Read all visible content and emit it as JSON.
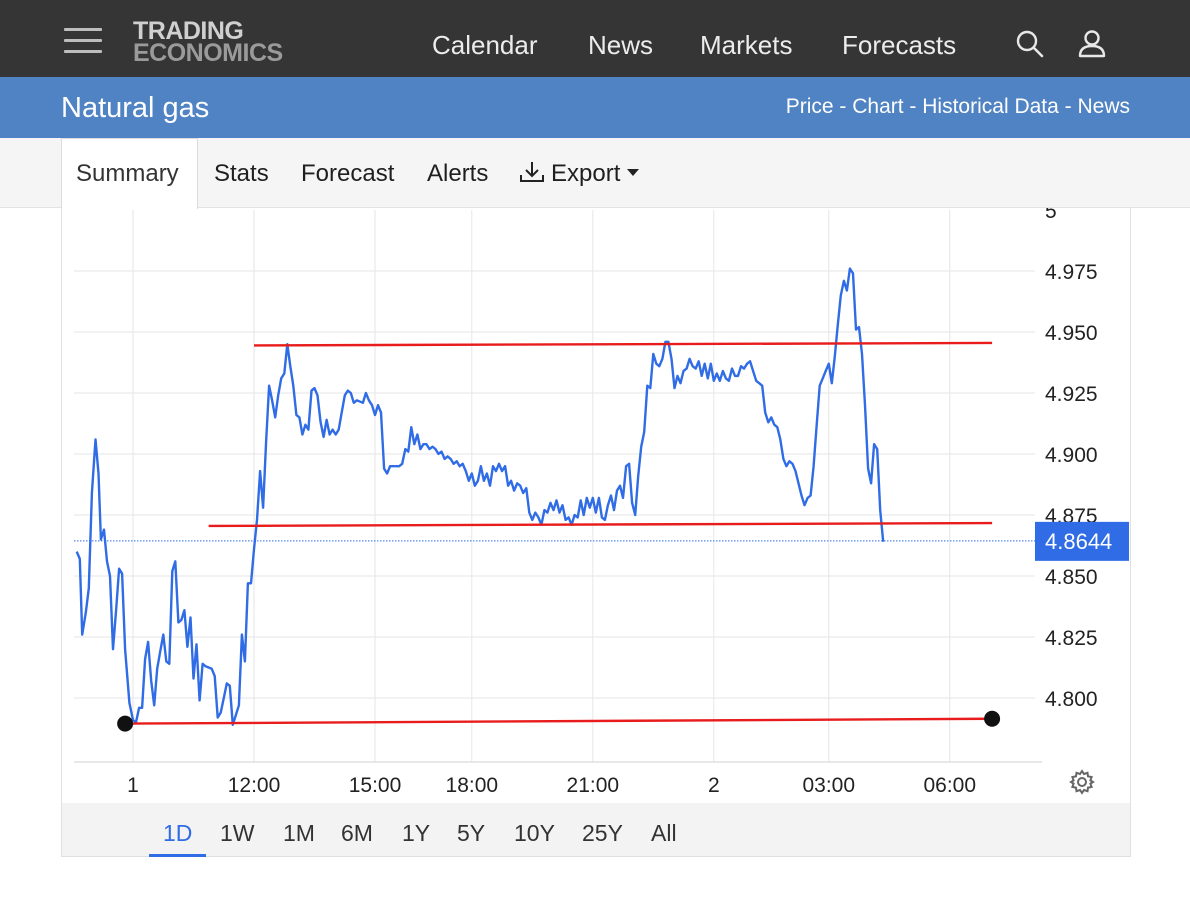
{
  "logo": {
    "line1": "TRADING",
    "line2": "ECONOMICS"
  },
  "nav": [
    {
      "label": "Calendar"
    },
    {
      "label": "News"
    },
    {
      "label": "Markets"
    },
    {
      "label": "Forecasts"
    }
  ],
  "title": "Natural gas",
  "sublinks": [
    "Price",
    "Chart",
    "Historical Data",
    "News"
  ],
  "sublink_sep": " - ",
  "tabs": {
    "summary": "Summary",
    "stats": "Stats",
    "forecast": "Forecast",
    "alerts": "Alerts",
    "export": "Export"
  },
  "ranges": [
    "1D",
    "1W",
    "1M",
    "6M",
    "1Y",
    "5Y",
    "10Y",
    "25Y",
    "All"
  ],
  "active_range": "1D",
  "colors": {
    "accent": "#2f6ce5",
    "line": "#2f6ce5",
    "trendline": "#e81c1c",
    "header": "#353535",
    "titlebar": "#4f83c3"
  },
  "chart_data": {
    "type": "line",
    "ylim": [
      4.78,
      5.0
    ],
    "yticks": [
      {
        "v": 5.0,
        "label": "5"
      },
      {
        "v": 4.975,
        "label": "4.975"
      },
      {
        "v": 4.95,
        "label": "4.950"
      },
      {
        "v": 4.925,
        "label": "4.925"
      },
      {
        "v": 4.9,
        "label": "4.900"
      },
      {
        "v": 4.875,
        "label": "4.875"
      },
      {
        "v": 4.85,
        "label": "4.850"
      },
      {
        "v": 4.825,
        "label": "4.825"
      },
      {
        "v": 4.8,
        "label": "4.800"
      }
    ],
    "xticks": [
      {
        "t": 0,
        "label": "1"
      },
      {
        "t": 2,
        "label": "12:00"
      },
      {
        "t": 4,
        "label": "15:00"
      },
      {
        "t": 5.6,
        "label": "18:00"
      },
      {
        "t": 7.6,
        "label": "21:00"
      },
      {
        "t": 9.6,
        "label": "2"
      },
      {
        "t": 11.5,
        "label": "03:00"
      },
      {
        "t": 13.5,
        "label": "06:00"
      }
    ],
    "xlim": [
      -0.95,
      14.8
    ],
    "last_value": "4.8644",
    "last_value_num": 4.8644,
    "series": [
      {
        "values": [
          [
            -0.93,
            4.86
          ],
          [
            -0.88,
            4.857
          ],
          [
            -0.84,
            4.826
          ],
          [
            -0.78,
            4.835
          ],
          [
            -0.73,
            4.845
          ],
          [
            -0.68,
            4.884
          ],
          [
            -0.62,
            4.906
          ],
          [
            -0.57,
            4.892
          ],
          [
            -0.53,
            4.865
          ],
          [
            -0.48,
            4.869
          ],
          [
            -0.43,
            4.856
          ],
          [
            -0.38,
            4.85
          ],
          [
            -0.33,
            4.82
          ],
          [
            -0.28,
            4.836
          ],
          [
            -0.23,
            4.853
          ],
          [
            -0.18,
            4.851
          ],
          [
            -0.13,
            4.82
          ],
          [
            -0.06,
            4.798
          ],
          [
            0.0,
            4.791
          ],
          [
            0.05,
            4.79
          ],
          [
            0.1,
            4.796
          ],
          [
            0.15,
            4.796
          ],
          [
            0.2,
            4.816
          ],
          [
            0.25,
            4.823
          ],
          [
            0.3,
            4.807
          ],
          [
            0.35,
            4.797
          ],
          [
            0.4,
            4.812
          ],
          [
            0.45,
            4.819
          ],
          [
            0.5,
            4.826
          ],
          [
            0.55,
            4.815
          ],
          [
            0.6,
            4.814
          ],
          [
            0.65,
            4.852
          ],
          [
            0.7,
            4.856
          ],
          [
            0.75,
            4.831
          ],
          [
            0.8,
            4.832
          ],
          [
            0.85,
            4.836
          ],
          [
            0.9,
            4.821
          ],
          [
            0.95,
            4.833
          ],
          [
            1.0,
            4.808
          ],
          [
            1.05,
            4.822
          ],
          [
            1.1,
            4.799
          ],
          [
            1.15,
            4.814
          ],
          [
            1.2,
            4.813
          ],
          [
            1.3,
            4.812
          ],
          [
            1.35,
            4.809
          ],
          [
            1.4,
            4.792
          ],
          [
            1.45,
            4.794
          ],
          [
            1.5,
            4.8
          ],
          [
            1.55,
            4.806
          ],
          [
            1.6,
            4.805
          ],
          [
            1.65,
            4.789
          ],
          [
            1.75,
            4.797
          ],
          [
            1.8,
            4.826
          ],
          [
            1.85,
            4.815
          ],
          [
            1.9,
            4.847
          ],
          [
            1.95,
            4.847
          ],
          [
            2.0,
            4.861
          ],
          [
            2.05,
            4.873
          ],
          [
            2.1,
            4.893
          ],
          [
            2.15,
            4.878
          ],
          [
            2.2,
            4.905
          ],
          [
            2.25,
            4.928
          ],
          [
            2.3,
            4.922
          ],
          [
            2.35,
            4.915
          ],
          [
            2.4,
            4.924
          ],
          [
            2.45,
            4.931
          ],
          [
            2.5,
            4.933
          ],
          [
            2.55,
            4.945
          ],
          [
            2.6,
            4.936
          ],
          [
            2.65,
            4.928
          ],
          [
            2.7,
            4.916
          ],
          [
            2.75,
            4.915
          ],
          [
            2.8,
            4.908
          ],
          [
            2.85,
            4.912
          ],
          [
            2.9,
            4.91
          ],
          [
            2.95,
            4.926
          ],
          [
            3.0,
            4.927
          ],
          [
            3.05,
            4.924
          ],
          [
            3.1,
            4.913
          ],
          [
            3.15,
            4.907
          ],
          [
            3.2,
            4.914
          ],
          [
            3.25,
            4.908
          ],
          [
            3.3,
            4.91
          ],
          [
            3.35,
            4.908
          ],
          [
            3.4,
            4.91
          ],
          [
            3.45,
            4.917
          ],
          [
            3.5,
            4.924
          ],
          [
            3.55,
            4.926
          ],
          [
            3.6,
            4.925
          ],
          [
            3.65,
            4.921
          ],
          [
            3.7,
            4.922
          ],
          [
            3.8,
            4.921
          ],
          [
            3.85,
            4.925
          ],
          [
            3.9,
            4.922
          ],
          [
            3.95,
            4.92
          ],
          [
            4.0,
            4.916
          ],
          [
            4.05,
            4.92
          ],
          [
            4.1,
            4.917
          ],
          [
            4.15,
            4.894
          ],
          [
            4.2,
            4.892
          ],
          [
            4.25,
            4.895
          ],
          [
            4.35,
            4.895
          ],
          [
            4.4,
            4.895
          ],
          [
            4.45,
            4.896
          ],
          [
            4.5,
            4.902
          ],
          [
            4.55,
            4.901
          ],
          [
            4.6,
            4.911
          ],
          [
            4.65,
            4.904
          ],
          [
            4.7,
            4.908
          ],
          [
            4.75,
            4.902
          ],
          [
            4.8,
            4.904
          ],
          [
            4.85,
            4.904
          ],
          [
            4.9,
            4.902
          ],
          [
            4.95,
            4.903
          ],
          [
            5.0,
            4.902
          ],
          [
            5.05,
            4.9
          ],
          [
            5.1,
            4.901
          ],
          [
            5.15,
            4.898
          ],
          [
            5.2,
            4.899
          ],
          [
            5.25,
            4.898
          ],
          [
            5.3,
            4.896
          ],
          [
            5.35,
            4.897
          ],
          [
            5.4,
            4.895
          ],
          [
            5.45,
            4.896
          ],
          [
            5.5,
            4.893
          ],
          [
            5.55,
            4.889
          ],
          [
            5.6,
            4.892
          ],
          [
            5.65,
            4.887
          ],
          [
            5.7,
            4.889
          ],
          [
            5.75,
            4.895
          ],
          [
            5.8,
            4.889
          ],
          [
            5.85,
            4.892
          ],
          [
            5.9,
            4.887
          ],
          [
            5.95,
            4.895
          ],
          [
            6.0,
            4.893
          ],
          [
            6.05,
            4.896
          ],
          [
            6.1,
            4.893
          ],
          [
            6.15,
            4.895
          ],
          [
            6.2,
            4.887
          ],
          [
            6.25,
            4.889
          ],
          [
            6.3,
            4.885
          ],
          [
            6.35,
            4.888
          ],
          [
            6.4,
            4.887
          ],
          [
            6.45,
            4.884
          ],
          [
            6.5,
            4.886
          ],
          [
            6.55,
            4.876
          ],
          [
            6.6,
            4.873
          ],
          [
            6.65,
            4.876
          ],
          [
            6.7,
            4.874
          ],
          [
            6.75,
            4.871
          ],
          [
            6.8,
            4.877
          ],
          [
            6.85,
            4.876
          ],
          [
            6.9,
            4.88
          ],
          [
            6.95,
            4.877
          ],
          [
            7.0,
            4.881
          ],
          [
            7.05,
            4.876
          ],
          [
            7.1,
            4.879
          ],
          [
            7.15,
            4.873
          ],
          [
            7.2,
            4.874
          ],
          [
            7.25,
            4.871
          ],
          [
            7.3,
            4.875
          ],
          [
            7.35,
            4.874
          ],
          [
            7.4,
            4.881
          ],
          [
            7.45,
            4.875
          ],
          [
            7.5,
            4.882
          ],
          [
            7.55,
            4.878
          ],
          [
            7.6,
            4.882
          ],
          [
            7.65,
            4.876
          ],
          [
            7.7,
            4.882
          ],
          [
            7.75,
            4.874
          ],
          [
            7.8,
            4.873
          ],
          [
            7.85,
            4.879
          ],
          [
            7.9,
            4.883
          ],
          [
            7.95,
            4.877
          ],
          [
            8.0,
            4.885
          ],
          [
            8.05,
            4.887
          ],
          [
            8.1,
            4.882
          ],
          [
            8.15,
            4.895
          ],
          [
            8.2,
            4.896
          ],
          [
            8.25,
            4.88
          ],
          [
            8.3,
            4.875
          ],
          [
            8.35,
            4.891
          ],
          [
            8.4,
            4.903
          ],
          [
            8.45,
            4.909
          ],
          [
            8.5,
            4.928
          ],
          [
            8.55,
            4.927
          ],
          [
            8.6,
            4.941
          ],
          [
            8.65,
            4.937
          ],
          [
            8.7,
            4.936
          ],
          [
            8.75,
            4.939
          ],
          [
            8.8,
            4.946
          ],
          [
            8.85,
            4.946
          ],
          [
            8.9,
            4.939
          ],
          [
            8.95,
            4.927
          ],
          [
            9.0,
            4.932
          ],
          [
            9.05,
            4.929
          ],
          [
            9.1,
            4.934
          ],
          [
            9.15,
            4.935
          ],
          [
            9.2,
            4.939
          ],
          [
            9.25,
            4.936
          ],
          [
            9.3,
            4.935
          ],
          [
            9.35,
            4.938
          ],
          [
            9.4,
            4.932
          ],
          [
            9.45,
            4.937
          ],
          [
            9.5,
            4.931
          ],
          [
            9.55,
            4.937
          ],
          [
            9.6,
            4.93
          ],
          [
            9.65,
            4.933
          ],
          [
            9.7,
            4.93
          ],
          [
            9.75,
            4.934
          ],
          [
            9.8,
            4.931
          ],
          [
            9.85,
            4.93
          ],
          [
            9.9,
            4.935
          ],
          [
            9.95,
            4.932
          ],
          [
            10.0,
            4.932
          ],
          [
            10.05,
            4.936
          ],
          [
            10.1,
            4.935
          ],
          [
            10.15,
            4.937
          ],
          [
            10.2,
            4.938
          ],
          [
            10.25,
            4.934
          ],
          [
            10.3,
            4.93
          ],
          [
            10.35,
            4.929
          ],
          [
            10.4,
            4.928
          ],
          [
            10.45,
            4.917
          ],
          [
            10.5,
            4.913
          ],
          [
            10.55,
            4.915
          ],
          [
            10.6,
            4.912
          ],
          [
            10.65,
            4.911
          ],
          [
            10.7,
            4.906
          ],
          [
            10.75,
            4.898
          ],
          [
            10.8,
            4.895
          ],
          [
            10.85,
            4.897
          ],
          [
            10.9,
            4.896
          ],
          [
            10.95,
            4.893
          ],
          [
            11.0,
            4.888
          ],
          [
            11.05,
            4.883
          ],
          [
            11.1,
            4.879
          ],
          [
            11.15,
            4.882
          ],
          [
            11.2,
            4.883
          ],
          [
            11.25,
            4.895
          ],
          [
            11.3,
            4.912
          ],
          [
            11.35,
            4.928
          ],
          [
            11.4,
            4.931
          ],
          [
            11.45,
            4.934
          ],
          [
            11.5,
            4.937
          ],
          [
            11.55,
            4.929
          ],
          [
            11.6,
            4.94
          ],
          [
            11.65,
            4.953
          ],
          [
            11.7,
            4.965
          ],
          [
            11.75,
            4.971
          ],
          [
            11.8,
            4.967
          ],
          [
            11.85,
            4.976
          ],
          [
            11.9,
            4.974
          ],
          [
            11.95,
            4.951
          ],
          [
            12.0,
            4.952
          ],
          [
            12.05,
            4.941
          ],
          [
            12.1,
            4.92
          ],
          [
            12.15,
            4.894
          ],
          [
            12.2,
            4.888
          ],
          [
            12.25,
            4.904
          ],
          [
            12.3,
            4.902
          ],
          [
            12.35,
            4.877
          ],
          [
            12.4,
            4.864
          ]
        ]
      }
    ],
    "trendlines": [
      {
        "from": [
          2.0,
          4.9445
        ],
        "to": [
          14.2,
          4.9455
        ]
      },
      {
        "from": [
          1.25,
          4.8705
        ],
        "to": [
          14.2,
          4.8717
        ]
      },
      {
        "from": [
          -0.13,
          4.7895
        ],
        "to": [
          14.2,
          4.7915
        ]
      }
    ]
  }
}
